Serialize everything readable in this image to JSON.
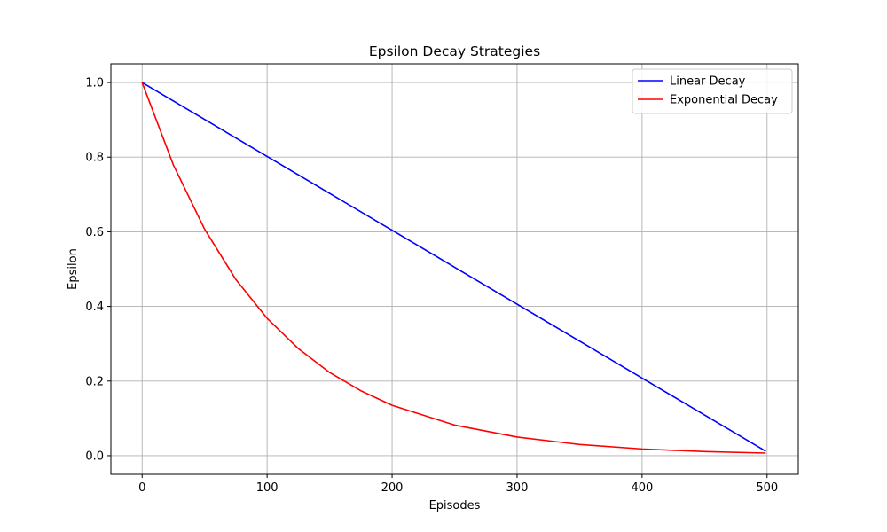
{
  "chart_data": {
    "type": "line",
    "title": "Epsilon Decay Strategies",
    "xlabel": "Episodes",
    "ylabel": "Epsilon",
    "xlim": [
      -25,
      525
    ],
    "ylim": [
      -0.05,
      1.05
    ],
    "xticks": [
      0,
      100,
      200,
      300,
      400,
      500
    ],
    "yticks": [
      0.0,
      0.2,
      0.4,
      0.6,
      0.8,
      1.0
    ],
    "xtick_labels": [
      "0",
      "100",
      "200",
      "300",
      "400",
      "500"
    ],
    "ytick_labels": [
      "0.0",
      "0.2",
      "0.4",
      "0.6",
      "0.8",
      "1.0"
    ],
    "grid": true,
    "legend_position": "top-right",
    "series": [
      {
        "name": "Linear Decay",
        "color": "#0000ff",
        "x": [
          0,
          50,
          100,
          150,
          200,
          250,
          300,
          350,
          400,
          450,
          499
        ],
        "y": [
          1.0,
          0.901,
          0.802,
          0.703,
          0.604,
          0.505,
          0.406,
          0.307,
          0.208,
          0.109,
          0.012
        ]
      },
      {
        "name": "Exponential Decay",
        "color": "#ff0000",
        "x": [
          0,
          25,
          50,
          75,
          100,
          125,
          150,
          175,
          200,
          250,
          300,
          350,
          400,
          450,
          499
        ],
        "y": [
          1.0,
          0.779,
          0.607,
          0.472,
          0.368,
          0.287,
          0.223,
          0.174,
          0.135,
          0.082,
          0.05,
          0.03,
          0.018,
          0.011,
          0.007
        ]
      }
    ]
  }
}
